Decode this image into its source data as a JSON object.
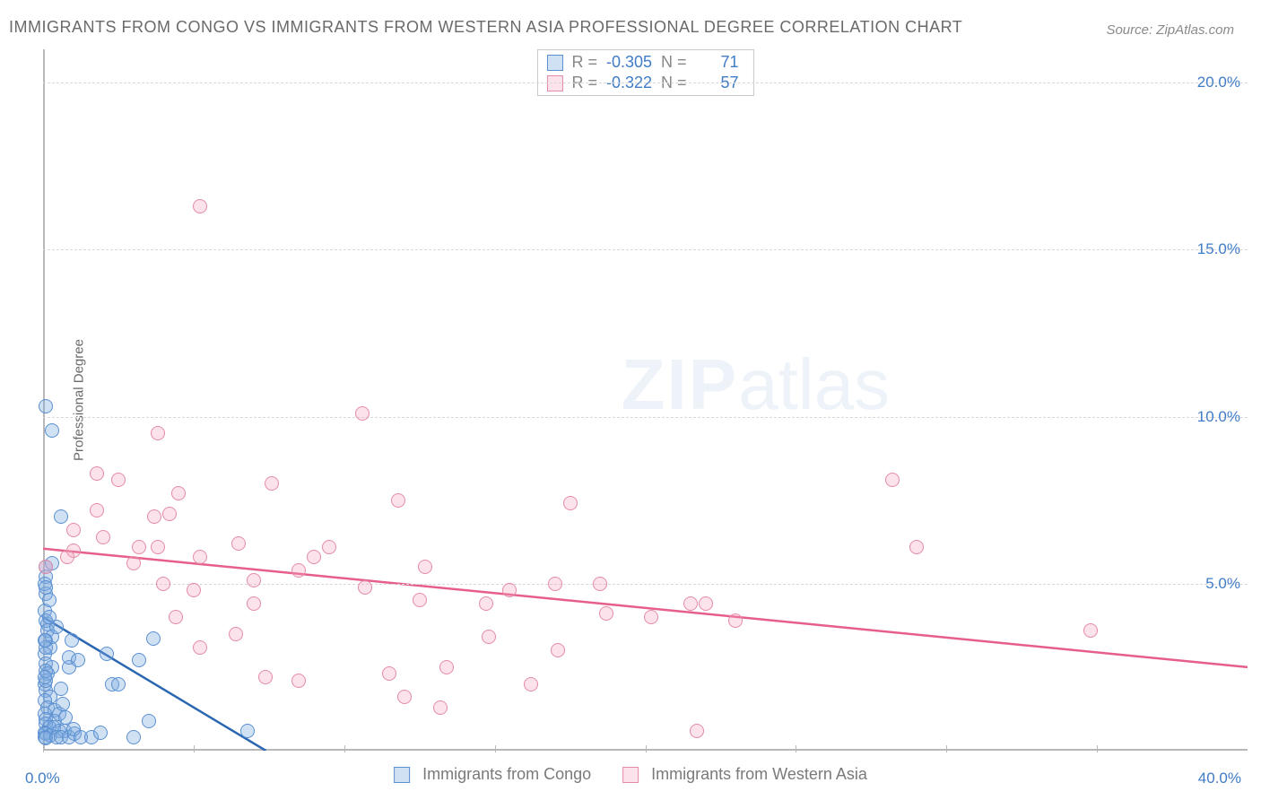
{
  "title": "IMMIGRANTS FROM CONGO VS IMMIGRANTS FROM WESTERN ASIA PROFESSIONAL DEGREE CORRELATION CHART",
  "source": "Source: ZipAtlas.com",
  "y_axis_label": "Professional Degree",
  "watermark": {
    "zip": "ZIP",
    "rest": "atlas"
  },
  "chart": {
    "type": "scatter",
    "xlim": [
      0,
      40
    ],
    "ylim": [
      0,
      21
    ],
    "y_ticks": [
      5,
      10,
      15,
      20
    ],
    "y_tick_labels": [
      "5.0%",
      "10.0%",
      "15.0%",
      "20.0%"
    ],
    "x_tick_positions": [
      0,
      5,
      10,
      15,
      20,
      25,
      30,
      35
    ],
    "x_start_label": "0.0%",
    "x_end_label": "40.0%",
    "grid_color": "#d8d8d8",
    "axis_color": "#b8b8b8",
    "point_radius": 8,
    "series": [
      {
        "name": "Immigrants from Congo",
        "fill": "rgba(122,169,224,0.35)",
        "stroke": "#5a8fd0",
        "R": "-0.305",
        "N": "71",
        "trend": {
          "x1": 0,
          "y1": 4.0,
          "x2": 7.4,
          "y2": 0,
          "color": "#2b66b2",
          "width": 2.5
        },
        "points": [
          [
            0.1,
            10.3
          ],
          [
            0.3,
            9.6
          ],
          [
            0.15,
            3.8
          ],
          [
            0.1,
            5.2
          ],
          [
            0.3,
            5.6
          ],
          [
            0.1,
            4.7
          ],
          [
            0.05,
            4.2
          ],
          [
            0.2,
            4.5
          ],
          [
            0.1,
            3.9
          ],
          [
            0.15,
            3.6
          ],
          [
            0.1,
            3.3
          ],
          [
            0.25,
            3.1
          ],
          [
            0.05,
            2.9
          ],
          [
            0.1,
            2.6
          ],
          [
            0.3,
            2.5
          ],
          [
            0.15,
            2.3
          ],
          [
            0.05,
            2.0
          ],
          [
            0.1,
            1.8
          ],
          [
            0.25,
            1.6
          ],
          [
            0.05,
            1.5
          ],
          [
            0.15,
            1.3
          ],
          [
            0.4,
            1.2
          ],
          [
            0.05,
            1.1
          ],
          [
            0.1,
            0.95
          ],
          [
            0.4,
            0.9
          ],
          [
            0.1,
            0.8
          ],
          [
            0.2,
            0.7
          ],
          [
            0.35,
            0.7
          ],
          [
            0.55,
            0.6
          ],
          [
            0.7,
            0.6
          ],
          [
            0.05,
            0.55
          ],
          [
            0.1,
            0.5
          ],
          [
            0.25,
            0.45
          ],
          [
            0.05,
            0.4
          ],
          [
            0.1,
            0.38
          ],
          [
            0.45,
            0.4
          ],
          [
            0.6,
            0.4
          ],
          [
            0.85,
            0.4
          ],
          [
            1.05,
            0.5
          ],
          [
            0.6,
            7.0
          ],
          [
            1.0,
            0.65
          ],
          [
            1.25,
            0.4
          ],
          [
            1.6,
            0.4
          ],
          [
            1.9,
            0.55
          ],
          [
            0.55,
            1.1
          ],
          [
            0.75,
            1.0
          ],
          [
            0.65,
            1.4
          ],
          [
            0.6,
            1.85
          ],
          [
            0.85,
            2.5
          ],
          [
            0.85,
            2.8
          ],
          [
            1.15,
            2.7
          ],
          [
            2.1,
            2.9
          ],
          [
            2.3,
            2.0
          ],
          [
            2.5,
            2.0
          ],
          [
            3.2,
            2.7
          ],
          [
            3.65,
            3.35
          ],
          [
            3.5,
            0.9
          ],
          [
            3.0,
            0.4
          ],
          [
            6.8,
            0.6
          ],
          [
            0.95,
            3.3
          ],
          [
            0.1,
            5.5
          ],
          [
            0.05,
            5.0
          ],
          [
            0.2,
            4.0
          ],
          [
            0.1,
            4.9
          ],
          [
            0.1,
            2.1
          ],
          [
            0.1,
            2.4
          ],
          [
            0.3,
            3.4
          ],
          [
            0.45,
            3.7
          ],
          [
            0.05,
            2.2
          ],
          [
            0.1,
            3.1
          ],
          [
            0.05,
            3.3
          ]
        ]
      },
      {
        "name": "Immigrants from Western Asia",
        "fill": "rgba(244,160,184,0.30)",
        "stroke": "#e48ba6",
        "R": "-0.322",
        "N": "57",
        "trend": {
          "x1": 0,
          "y1": 6.05,
          "x2": 40,
          "y2": 2.5,
          "color": "#e65f8a",
          "width": 2.5
        },
        "points": [
          [
            5.2,
            16.3
          ],
          [
            1.8,
            8.3
          ],
          [
            2.5,
            8.1
          ],
          [
            3.8,
            9.5
          ],
          [
            1.8,
            7.2
          ],
          [
            4.5,
            7.7
          ],
          [
            4.2,
            7.1
          ],
          [
            3.2,
            6.1
          ],
          [
            1.0,
            6.0
          ],
          [
            3.8,
            6.1
          ],
          [
            5.2,
            5.8
          ],
          [
            6.5,
            6.2
          ],
          [
            7.6,
            8.0
          ],
          [
            5.0,
            4.8
          ],
          [
            7.0,
            5.1
          ],
          [
            7.0,
            4.4
          ],
          [
            5.2,
            3.1
          ],
          [
            6.4,
            3.5
          ],
          [
            8.5,
            5.4
          ],
          [
            9.0,
            5.8
          ],
          [
            9.5,
            6.1
          ],
          [
            10.6,
            10.1
          ],
          [
            10.7,
            4.9
          ],
          [
            11.5,
            2.3
          ],
          [
            11.8,
            7.5
          ],
          [
            12.0,
            1.6
          ],
          [
            13.2,
            1.3
          ],
          [
            12.5,
            4.5
          ],
          [
            12.7,
            5.5
          ],
          [
            13.4,
            2.5
          ],
          [
            14.7,
            4.4
          ],
          [
            14.8,
            3.4
          ],
          [
            15.5,
            4.8
          ],
          [
            16.2,
            2.0
          ],
          [
            17.0,
            5.0
          ],
          [
            17.1,
            3.0
          ],
          [
            17.5,
            7.4
          ],
          [
            18.5,
            5.0
          ],
          [
            18.7,
            4.1
          ],
          [
            20.2,
            4.0
          ],
          [
            21.5,
            4.4
          ],
          [
            22.0,
            4.4
          ],
          [
            23.0,
            3.9
          ],
          [
            28.2,
            8.1
          ],
          [
            29.0,
            6.1
          ],
          [
            34.8,
            3.6
          ],
          [
            21.7,
            0.6
          ],
          [
            8.5,
            2.1
          ],
          [
            4.4,
            4.0
          ],
          [
            7.4,
            2.2
          ],
          [
            4.0,
            5.0
          ],
          [
            1.0,
            6.6
          ],
          [
            0.8,
            5.8
          ],
          [
            2.0,
            6.4
          ],
          [
            3.7,
            7.0
          ],
          [
            3.0,
            5.6
          ],
          [
            0.1,
            5.5
          ]
        ]
      }
    ]
  },
  "legend_labels": [
    "Immigrants from Congo",
    "Immigrants from Western Asia"
  ],
  "stats_labels": {
    "R": "R =",
    "N": "N ="
  }
}
